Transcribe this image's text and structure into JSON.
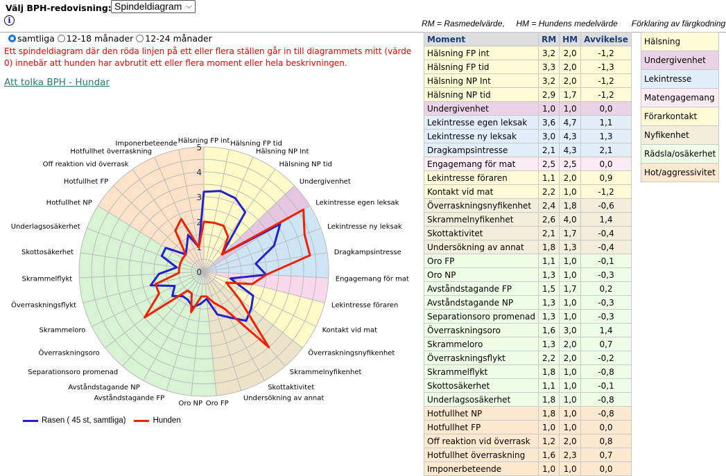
{
  "header": {
    "select_label": "Välj BPH-redovisning:",
    "select_value": "Spindeldiagram",
    "info_icon": "i",
    "legend_note": "RM = Rasmedelvärde,     HM = Hundens medelvärde      Förklaring av färgkodning"
  },
  "filters": [
    {
      "label": "samtliga",
      "checked": true
    },
    {
      "label": "12-18 månader",
      "checked": false
    },
    {
      "label": "12-24 månader",
      "checked": false
    }
  ],
  "warning": "Ett spindeldiagram där den röda linjen på ett eller flera ställen går in till diagrammets mitt (värde 0) innebär att hunden har avbrutit ett eller flera moment eller hela beskrivningen.",
  "link": "Att tolka BPH - Hundar",
  "colors": {
    "rasen": "#2222cc",
    "hunden": "#ee2200"
  },
  "categories": [
    {
      "key": "halsning",
      "label": "Hälsning",
      "color": "#fffbd6",
      "chart": "#fffbc8"
    },
    {
      "key": "undergivenhet",
      "label": "Undergivenhet",
      "color": "#ead3e6",
      "chart": "#e4c6e0"
    },
    {
      "key": "lek",
      "label": "Lekintresse",
      "color": "#e2eef9",
      "chart": "#cde5f5"
    },
    {
      "key": "mat",
      "label": "Matengagemang",
      "color": "#fdebf3",
      "chart": "#f8d8ea"
    },
    {
      "key": "forar",
      "label": "Förarkontakt",
      "color": "#fffbd6",
      "chart": "#fffbc8"
    },
    {
      "key": "nyfiken",
      "label": "Nyfikenhet",
      "color": "#f3eedb",
      "chart": "#ece3c8"
    },
    {
      "key": "radsla",
      "label": "Rädsla/osäkerhet",
      "color": "#eefde6",
      "chart": "#d8f2d4"
    },
    {
      "key": "hot",
      "label": "Hot/aggressivitet",
      "color": "#fde8d0",
      "chart": "#fbe2c8"
    }
  ],
  "table": {
    "headers": [
      "Moment",
      "RM",
      "HM",
      "Avvikelse"
    ],
    "rows": [
      {
        "moment": "Hälsning FP int",
        "rm": "3,2",
        "hm": "2,0",
        "avv": "-1,2",
        "cat": "halsning"
      },
      {
        "moment": "Hälsning FP tid",
        "rm": "3,3",
        "hm": "2,0",
        "avv": "-1,3",
        "cat": "halsning"
      },
      {
        "moment": "Hälsning NP Int",
        "rm": "3,2",
        "hm": "2,0",
        "avv": "-1,2",
        "cat": "halsning"
      },
      {
        "moment": "Hälsning NP tid",
        "rm": "2,9",
        "hm": "1,7",
        "avv": "-1,2",
        "cat": "halsning"
      },
      {
        "moment": "Undergivenhet",
        "rm": "1,0",
        "hm": "1,0",
        "avv": "0,0",
        "cat": "undergivenhet"
      },
      {
        "moment": "Lekintresse egen leksak",
        "rm": "3,6",
        "hm": "4,7",
        "avv": "1,1",
        "cat": "lek"
      },
      {
        "moment": "Lekintresse ny leksak",
        "rm": "3,0",
        "hm": "4,3",
        "avv": "1,3",
        "cat": "lek"
      },
      {
        "moment": "Dragkampsintresse",
        "rm": "2,1",
        "hm": "4,3",
        "avv": "2,1",
        "cat": "lek"
      },
      {
        "moment": "Engagemang för mat",
        "rm": "2,5",
        "hm": "2,5",
        "avv": "0,0",
        "cat": "mat"
      },
      {
        "moment": "Lekintresse föraren",
        "rm": "1,1",
        "hm": "2,0",
        "avv": "0,9",
        "cat": "forar"
      },
      {
        "moment": "Kontakt vid mat",
        "rm": "2,2",
        "hm": "1,0",
        "avv": "-1,2",
        "cat": "forar"
      },
      {
        "moment": "Överraskningsnyfikenhet",
        "rm": "2,4",
        "hm": "1,8",
        "avv": "-0,6",
        "cat": "nyfiken"
      },
      {
        "moment": "Skrammelnyfikenhet",
        "rm": "2,6",
        "hm": "4,0",
        "avv": "1,4",
        "cat": "nyfiken"
      },
      {
        "moment": "Skottaktivitet",
        "rm": "2,1",
        "hm": "1,7",
        "avv": "-0,4",
        "cat": "nyfiken"
      },
      {
        "moment": "Undersökning av annat",
        "rm": "1,8",
        "hm": "1,3",
        "avv": "-0,4",
        "cat": "nyfiken"
      },
      {
        "moment": "Oro FP",
        "rm": "1,1",
        "hm": "1,0",
        "avv": "-0,1",
        "cat": "radsla"
      },
      {
        "moment": "Oro NP",
        "rm": "1,3",
        "hm": "1,0",
        "avv": "-0,3",
        "cat": "radsla"
      },
      {
        "moment": "Avståndstagande FP",
        "rm": "1,5",
        "hm": "1,7",
        "avv": "0,2",
        "cat": "radsla"
      },
      {
        "moment": "Avståndstagande NP",
        "rm": "1,3",
        "hm": "1,0",
        "avv": "-0,3",
        "cat": "radsla"
      },
      {
        "moment": "Separationsoro promenad",
        "rm": "1,3",
        "hm": "1,0",
        "avv": "-0,3",
        "cat": "radsla"
      },
      {
        "moment": "Överraskningsoro",
        "rm": "1,6",
        "hm": "3,0",
        "avv": "1,4",
        "cat": "radsla"
      },
      {
        "moment": "Skrammeloro",
        "rm": "1,3",
        "hm": "2,0",
        "avv": "0,7",
        "cat": "radsla"
      },
      {
        "moment": "Överraskningsflykt",
        "rm": "2,2",
        "hm": "2,0",
        "avv": "-0,2",
        "cat": "radsla"
      },
      {
        "moment": "Skrammelflykt",
        "rm": "1,8",
        "hm": "1,0",
        "avv": "-0,8",
        "cat": "radsla"
      },
      {
        "moment": "Skottosäkerhet",
        "rm": "1,1",
        "hm": "1,0",
        "avv": "-0,1",
        "cat": "radsla"
      },
      {
        "moment": "Underlagsosäkerhet",
        "rm": "1,8",
        "hm": "1,0",
        "avv": "-0,8",
        "cat": "radsla"
      },
      {
        "moment": "Hotfullhet NP",
        "rm": "1,8",
        "hm": "1,0",
        "avv": "-0,8",
        "cat": "hot"
      },
      {
        "moment": "Hotfullhet FP",
        "rm": "1,0",
        "hm": "1,0",
        "avv": "0,0",
        "cat": "hot"
      },
      {
        "moment": "Off reaktion vid överrask",
        "rm": "1,2",
        "hm": "2,0",
        "avv": "0,8",
        "cat": "hot"
      },
      {
        "moment": "Hotfullhet överraskning",
        "rm": "1,6",
        "hm": "2,3",
        "avv": "0,7",
        "cat": "hot"
      },
      {
        "moment": "Imponerbeteende",
        "rm": "1,0",
        "hm": "1,0",
        "avv": "0,0",
        "cat": "hot"
      }
    ]
  },
  "chart_data": {
    "type": "radar",
    "rlim": [
      0,
      5
    ],
    "ticks": [
      "0",
      "1",
      "2",
      "3",
      "4",
      "5"
    ],
    "grid": true,
    "legend_position": "bottom-left",
    "series": [
      {
        "name": "Rasen ( 45 st, samtliga)",
        "source": "rm"
      },
      {
        "name": "Hunden",
        "source": "hm"
      }
    ]
  }
}
